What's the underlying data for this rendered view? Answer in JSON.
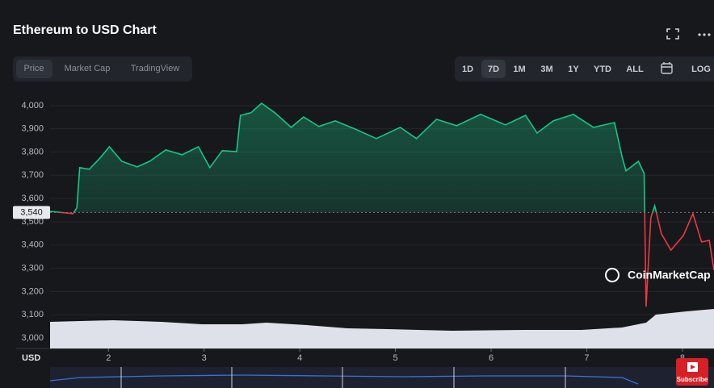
{
  "ui": {
    "title": "Ethereum to USD Chart",
    "tabs": [
      "Price",
      "Market Cap",
      "TradingView"
    ],
    "ranges": [
      "1D",
      "7D",
      "1M",
      "3M",
      "1Y",
      "YTD",
      "ALL",
      "LOG"
    ],
    "watermark": "CoinMarketCap",
    "subscribe": "Subscribe"
  },
  "chart_data": {
    "type": "line",
    "y_axis_label": "USD",
    "x": [
      1.39,
      1.63,
      1.67,
      1.7,
      1.8,
      1.92,
      2.01,
      2.14,
      2.3,
      2.43,
      2.6,
      2.77,
      2.94,
      3.06,
      3.19,
      3.34,
      3.38,
      3.49,
      3.6,
      3.74,
      3.91,
      4.04,
      4.2,
      4.37,
      4.58,
      4.8,
      5.05,
      5.22,
      5.43,
      5.64,
      5.89,
      6.15,
      6.36,
      6.48,
      6.65,
      6.86,
      7.07,
      7.29,
      7.37,
      7.41,
      7.54,
      7.6,
      7.62,
      7.67,
      7.71,
      7.78,
      7.88,
      8.01,
      8.11,
      8.2,
      8.28,
      8.33
    ],
    "values": [
      3545,
      3535,
      3560,
      3733,
      3726,
      3778,
      3823,
      3760,
      3736,
      3760,
      3809,
      3788,
      3823,
      3733,
      3806,
      3802,
      3958,
      3969,
      4010,
      3969,
      3906,
      3951,
      3910,
      3934,
      3899,
      3858,
      3906,
      3858,
      3941,
      3913,
      3962,
      3917,
      3958,
      3882,
      3934,
      3962,
      3906,
      3927,
      3778,
      3719,
      3760,
      3708,
      3135,
      3517,
      3569,
      3448,
      3378,
      3441,
      3535,
      3413,
      3420,
      3292
    ],
    "color_up": "#16c784",
    "color_down": "#ea3943",
    "baseline": {
      "value": 3540,
      "label": "3,540"
    },
    "xlim": [
      1.39,
      8.33
    ],
    "ylim": [
      2955,
      4055
    ],
    "xticks": [
      2,
      3,
      4,
      5,
      6,
      7,
      8
    ],
    "yticks": [
      {
        "value": 3000,
        "label": "3,000"
      },
      {
        "value": 3100,
        "label": "3,100"
      },
      {
        "value": 3200,
        "label": "3,200"
      },
      {
        "value": 3300,
        "label": "3,300"
      },
      {
        "value": 3400,
        "label": "3,400"
      },
      {
        "value": 3500,
        "label": "3,500"
      },
      {
        "value": 3600,
        "label": "3,600"
      },
      {
        "value": 3700,
        "label": "3,700"
      },
      {
        "value": 3800,
        "label": "3,800"
      },
      {
        "value": 3900,
        "label": "3,900"
      },
      {
        "value": 4000,
        "label": "4,000"
      }
    ],
    "grid": true
  }
}
